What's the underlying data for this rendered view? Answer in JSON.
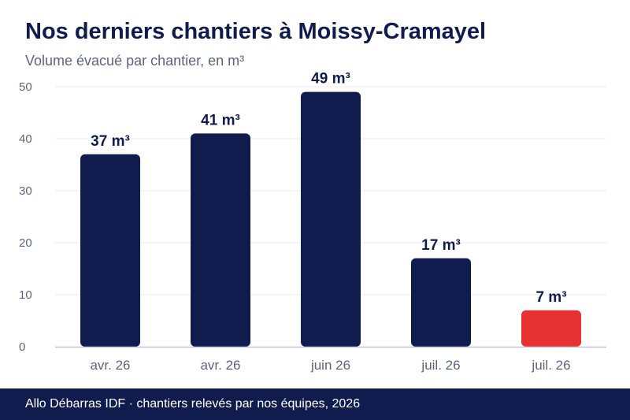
{
  "title": "Nos derniers chantiers à Moissy-Cramayel",
  "subtitle": "Volume évacué par chantier, en m³",
  "footer": "Allo Débarras IDF · chantiers relevés par nos équipes, 2026",
  "colors": {
    "bar": "#0f1c4d",
    "highlight": "#e63232",
    "grid": "#ebebef",
    "axis": "#c4c6d6",
    "tick": "#5d6380",
    "label": "#0f1c4d"
  },
  "chart_data": {
    "type": "bar",
    "categories": [
      "avr. 26",
      "avr. 26",
      "juin 26",
      "juil. 26",
      "juil. 26"
    ],
    "values": [
      37,
      41,
      49,
      17,
      7
    ],
    "data_labels": [
      "37 m³",
      "41 m³",
      "49 m³",
      "17 m³",
      "7 m³"
    ],
    "highlight_index": 4,
    "ylim": [
      0,
      50
    ],
    "yticks": [
      0,
      10,
      20,
      30,
      40,
      50
    ],
    "grid": true,
    "legend": "none"
  }
}
